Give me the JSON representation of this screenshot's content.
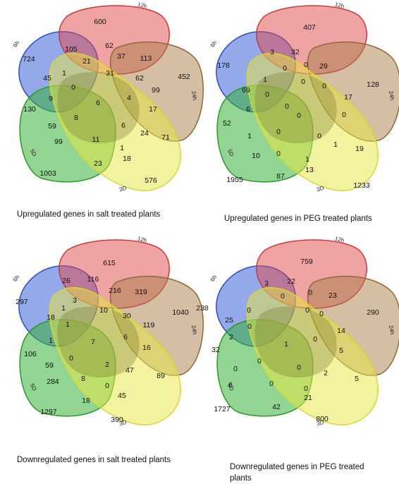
{
  "sets": {
    "h6": "6h",
    "h12": "12h",
    "h24": "24h",
    "d5": "5D",
    "d3": "3D"
  },
  "colors": {
    "blue": "#3a62d8",
    "red": "#e04848",
    "brown": "#a97d4a",
    "green": "#39b039",
    "yellow": "#e8e840"
  },
  "panels": [
    {
      "caption": "Upregulated genes in salt treated plants",
      "values": {
        "blue_only": "724",
        "red_only": "600",
        "brown_only": "452",
        "green_only": "1003",
        "yellow_only": "576",
        "a1": "105",
        "a2": "62",
        "a3": "37",
        "a4": "113",
        "a5": "45",
        "a6": "21",
        "a7": "99",
        "a8": "1",
        "a9": "0",
        "a10": "31",
        "a11": "62",
        "a12": "130",
        "a13": "9",
        "a14": "6",
        "a15": "4",
        "a16": "17",
        "a17": "8",
        "a18": "6",
        "a19": "59",
        "a20": "99",
        "a21": "11",
        "a22": "24",
        "a23": "71",
        "a24": "1",
        "a25": "23",
        "a26": "18"
      }
    },
    {
      "caption": "Upregulated genes in PEG treated plants",
      "values": {
        "blue_only": "178",
        "red_only": "407",
        "brown_only": "128",
        "green_only": "1955",
        "yellow_only": "1233",
        "a1": "3",
        "a2": "32",
        "a3": "0",
        "a4": "29",
        "a5": "69",
        "a6": "0",
        "a7": "17",
        "a8": "1",
        "a9": "0",
        "a10": "0",
        "a11": "0",
        "a12": "52",
        "a13": "6",
        "a14": "0",
        "a15": "0",
        "a16": "0",
        "a17": "0",
        "a18": "0",
        "a19": "1",
        "a20": "10",
        "a21": "0",
        "a22": "1",
        "a23": "19",
        "a24": "1",
        "a25": "87",
        "a26": "13"
      }
    },
    {
      "caption": "Downregulated genes in salt treated plants",
      "values": {
        "blue_only": "297",
        "red_only": "615",
        "brown_only": "1040",
        "green_only": "1297",
        "yellow_only": "390",
        "a1": "26",
        "a2": "116",
        "a3": "216",
        "a4": "319",
        "a5": "18",
        "a6": "3",
        "a7": "119",
        "a8": "1",
        "a9": "1",
        "a10": "10",
        "a11": "30",
        "a12": "106",
        "a13": "1",
        "a14": "7",
        "a15": "6",
        "a16": "16",
        "a17": "0",
        "a18": "2",
        "a19": "59",
        "a20": "284",
        "a21": "8",
        "a22": "47",
        "a23": "89",
        "a24": "0",
        "a25": "18",
        "a26": "45"
      }
    },
    {
      "caption": "Downregulated genes in PEG treated plants",
      "values": {
        "blue_only": "238",
        "red_only": "759",
        "brown_only": "290",
        "green_only": "1727",
        "yellow_only": "800",
        "a1": "3",
        "a2": "22",
        "a3": "0",
        "a4": "23",
        "a5": "25",
        "a6": "0",
        "a7": "14",
        "a8": "0",
        "a9": "0",
        "a10": "0",
        "a11": "0",
        "a12": "32",
        "a13": "2",
        "a14": "1",
        "a15": "0",
        "a16": "5",
        "a17": "0",
        "a18": "0",
        "a19": "0",
        "a20": "6",
        "a21": "0",
        "a22": "2",
        "a23": "5",
        "a24": "0",
        "a25": "42",
        "a26": "21"
      }
    }
  ]
}
